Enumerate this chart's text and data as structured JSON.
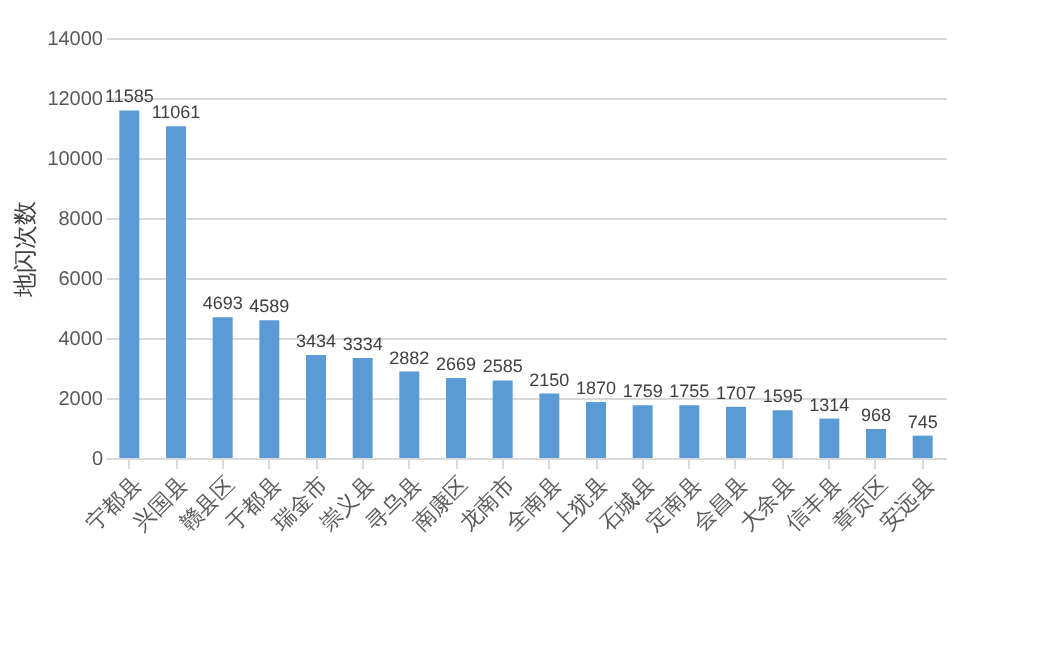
{
  "chart_data": {
    "type": "bar",
    "ylabel": "地闪次数",
    "categories": [
      "宁都县",
      "兴国县",
      "赣县区",
      "于都县",
      "瑞金市",
      "崇义县",
      "寻乌县",
      "南康区",
      "龙南市",
      "全南县",
      "上犹县",
      "石城县",
      "定南县",
      "会昌县",
      "大余县",
      "信丰县",
      "章贡区",
      "安远县"
    ],
    "values": [
      11585,
      11061,
      4693,
      4589,
      3434,
      3334,
      2882,
      2669,
      2585,
      2150,
      1870,
      1759,
      1755,
      1707,
      1595,
      1314,
      968,
      745
    ],
    "color": "#5b9bd5",
    "ylim": [
      0,
      14000
    ],
    "yticks": [
      0,
      2000,
      4000,
      6000,
      8000,
      10000,
      12000,
      14000
    ],
    "grid": "y",
    "data_labels": true
  }
}
